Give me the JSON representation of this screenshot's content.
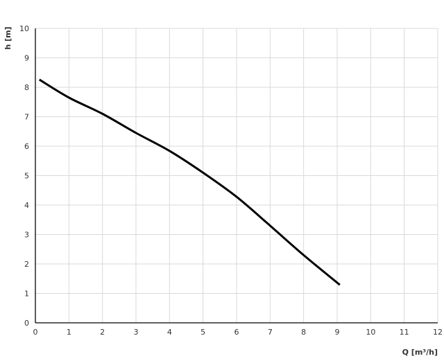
{
  "chart_data": {
    "type": "line",
    "title": "",
    "xlabel": "Q [m³/h]",
    "ylabel": "h [m]",
    "xlim": [
      0,
      12
    ],
    "ylim": [
      0,
      10
    ],
    "x_ticks": [
      "0",
      "1",
      "2",
      "3",
      "4",
      "5",
      "6",
      "7",
      "8",
      "9",
      "10",
      "11",
      "12"
    ],
    "y_ticks": [
      "0",
      "1",
      "2",
      "3",
      "4",
      "5",
      "6",
      "7",
      "8",
      "9",
      "10"
    ],
    "grid": true,
    "series": [
      {
        "color": "#000000",
        "x": [
          0.12,
          1,
          2,
          3,
          4,
          5,
          6,
          7,
          8,
          9.08
        ],
        "y": [
          8.26,
          7.65,
          7.1,
          6.45,
          5.84,
          5.1,
          4.28,
          3.3,
          2.3,
          1.29
        ]
      }
    ]
  }
}
